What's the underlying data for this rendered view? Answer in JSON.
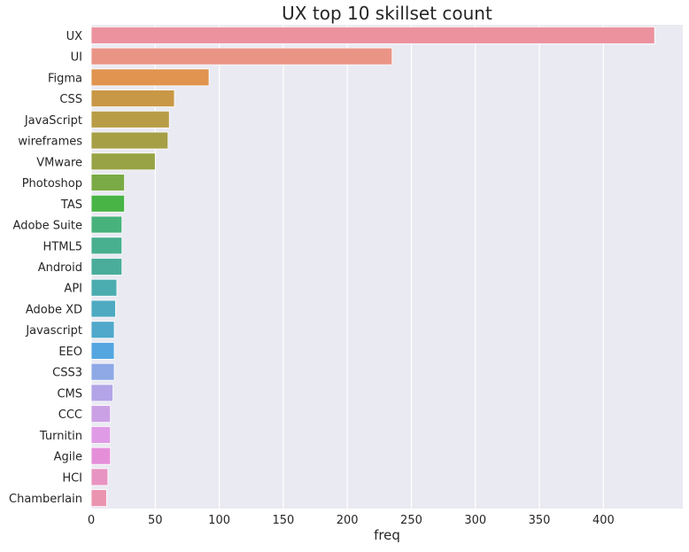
{
  "chart_data": {
    "type": "bar",
    "orientation": "horizontal",
    "title": "UX top 10 skillset count",
    "xlabel": "freq",
    "ylabel": "",
    "xlim": [
      0,
      462
    ],
    "xticks": [
      0,
      50,
      100,
      150,
      200,
      250,
      300,
      350,
      400
    ],
    "grid": true,
    "categories": [
      "UX",
      "UI",
      "Figma",
      "CSS",
      "JavaScript",
      "wireframes",
      "VMware",
      "Photoshop",
      "TAS",
      "Adobe Suite",
      "HTML5",
      "Android",
      "API",
      "Adobe XD",
      "Javascript",
      "EEO",
      "CSS3",
      "CMS",
      "CCC",
      "Turnitin",
      "Agile",
      "HCI",
      "Chamberlain"
    ],
    "values": [
      440,
      235,
      92,
      65,
      61,
      60,
      50,
      26,
      26,
      24,
      24,
      24,
      20,
      19,
      18,
      18,
      18,
      17,
      15,
      15,
      15,
      13,
      12
    ],
    "colors": [
      "#ec929f",
      "#ea9486",
      "#e0944f",
      "#c99846",
      "#b89d46",
      "#a69f46",
      "#98a346",
      "#7aaa45",
      "#49b446",
      "#48b27c",
      "#48b08f",
      "#4aad9c",
      "#4cadb0",
      "#4eaac0",
      "#50a8cb",
      "#54a6e0",
      "#8ea9e6",
      "#b2a4e6",
      "#cba1e6",
      "#e09be6",
      "#e58fd9",
      "#e894c2",
      "#eb94b0"
    ]
  }
}
